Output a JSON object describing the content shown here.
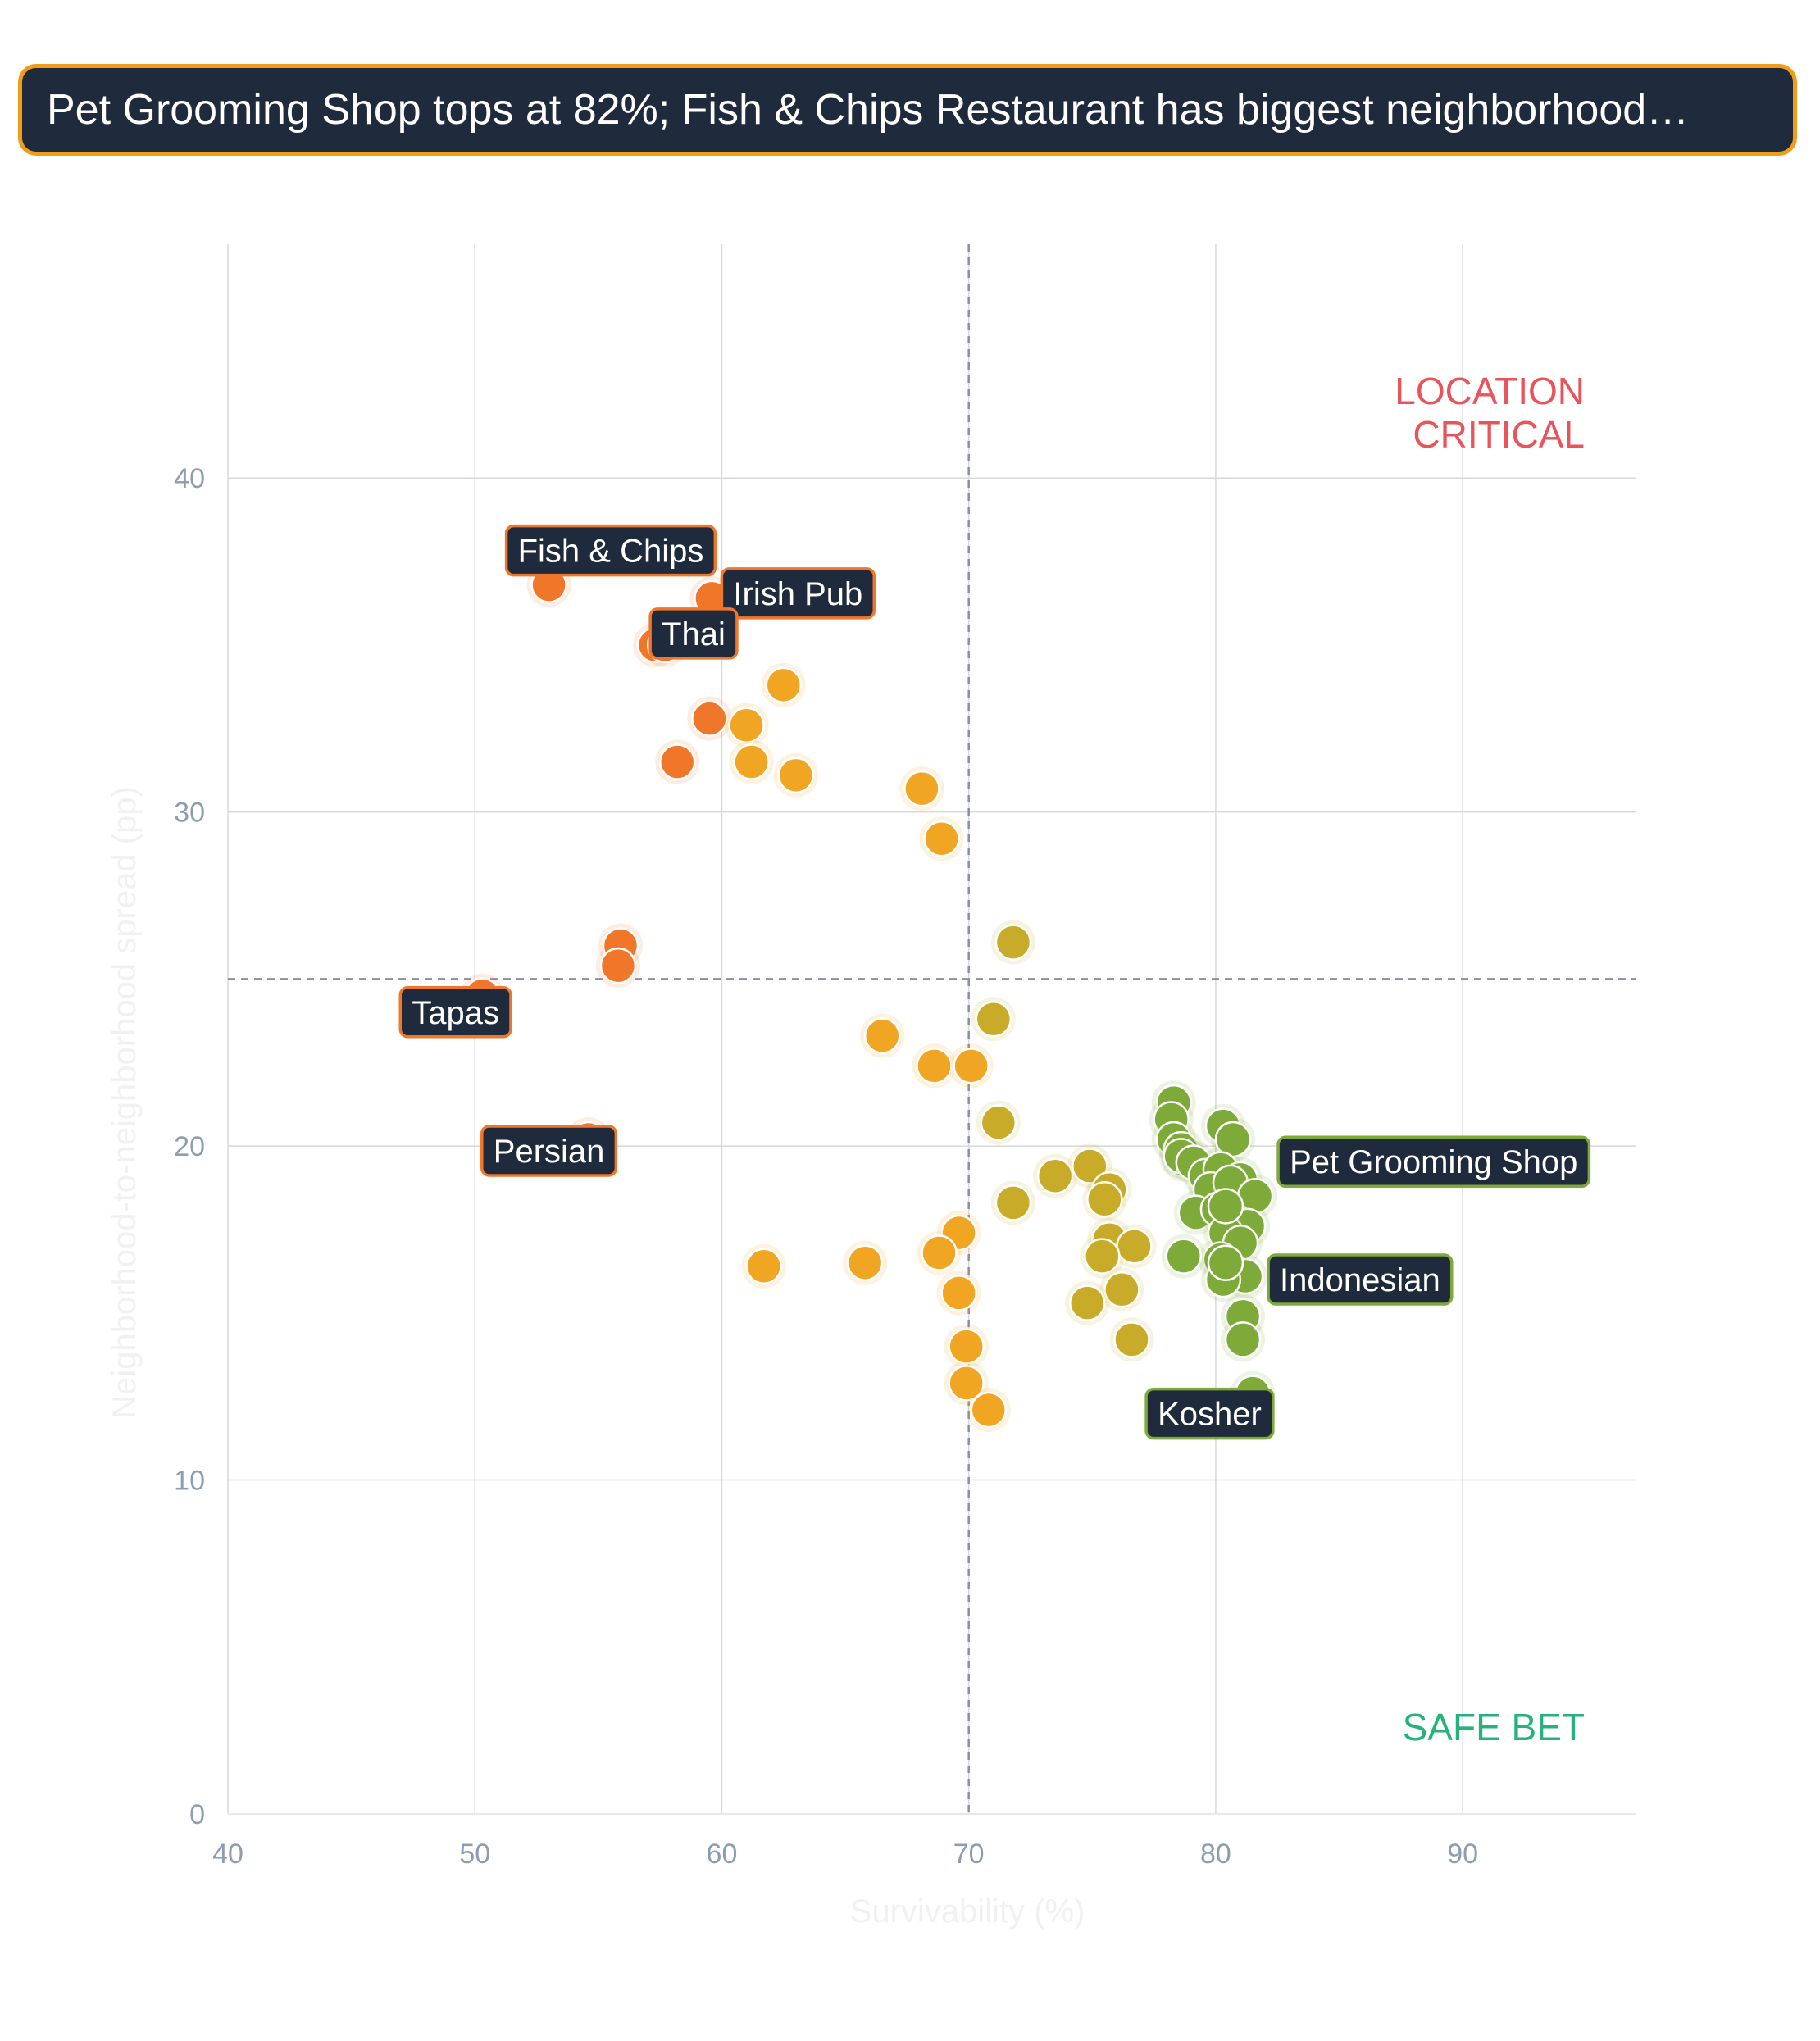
{
  "headline": "Pet Grooming Shop tops at 82%; Fish & Chips Restaurant has biggest neighborhood…",
  "quadrants": {
    "top_right": {
      "lines": [
        "LOCATION",
        "CRITICAL"
      ],
      "color": "#e8545a"
    },
    "bottom_right": {
      "lines": [
        "SAFE BET"
      ],
      "color": "#25b27c"
    }
  },
  "colors": {
    "orange": "#f0772a",
    "amber": "#f0a623",
    "olive": "#c8ab28",
    "green": "#7eaa3a",
    "annotation_bg": "#1f2a3c",
    "reference_line": "#8a8f9b",
    "headline_border": "#f19d1a"
  },
  "chart_data": {
    "type": "scatter",
    "xlabel": "Survivability (%)",
    "ylabel": "Neighborhood-to-neighborhood spread (pp)",
    "xlim": [
      40,
      97
    ],
    "ylim": [
      0,
      47
    ],
    "xticks": [
      40,
      50,
      60,
      70,
      80,
      90
    ],
    "yticks": [
      0,
      10,
      20,
      30,
      40
    ],
    "grid": true,
    "reference_lines": {
      "x": 70,
      "y": 25
    },
    "annotations": [
      {
        "label": "Fish & Chips",
        "x": 53.0,
        "y": 36.8
      },
      {
        "label": "Irish Pub",
        "x": 59.6,
        "y": 36.4
      },
      {
        "label": "Thai",
        "x": 57.3,
        "y": 35.0
      },
      {
        "label": "Tapas",
        "x": 50.3,
        "y": 24.5
      },
      {
        "label": "Persian",
        "x": 54.6,
        "y": 20.2
      },
      {
        "label": "Pet Grooming Shop",
        "x": 81.6,
        "y": 18.5
      },
      {
        "label": "Indonesian",
        "x": 81.2,
        "y": 16.1
      },
      {
        "label": "Kosher",
        "x": 81.5,
        "y": 12.6
      }
    ],
    "points": [
      {
        "x": 53.0,
        "y": 36.8
      },
      {
        "x": 59.6,
        "y": 36.4
      },
      {
        "x": 57.3,
        "y": 35.0
      },
      {
        "x": 57.7,
        "y": 35.0
      },
      {
        "x": 62.5,
        "y": 33.8
      },
      {
        "x": 59.5,
        "y": 32.8
      },
      {
        "x": 61.0,
        "y": 32.6
      },
      {
        "x": 58.2,
        "y": 31.5
      },
      {
        "x": 61.2,
        "y": 31.5
      },
      {
        "x": 63.0,
        "y": 31.1
      },
      {
        "x": 68.1,
        "y": 30.7
      },
      {
        "x": 68.9,
        "y": 29.2
      },
      {
        "x": 55.9,
        "y": 26.0
      },
      {
        "x": 55.8,
        "y": 25.4
      },
      {
        "x": 71.8,
        "y": 26.1
      },
      {
        "x": 50.3,
        "y": 24.5
      },
      {
        "x": 71.0,
        "y": 23.8
      },
      {
        "x": 66.5,
        "y": 23.3
      },
      {
        "x": 68.6,
        "y": 22.4
      },
      {
        "x": 70.1,
        "y": 22.4
      },
      {
        "x": 71.2,
        "y": 20.7
      },
      {
        "x": 54.6,
        "y": 20.2
      },
      {
        "x": 73.5,
        "y": 19.1
      },
      {
        "x": 74.9,
        "y": 19.4
      },
      {
        "x": 75.7,
        "y": 18.7
      },
      {
        "x": 75.5,
        "y": 18.4
      },
      {
        "x": 71.8,
        "y": 18.3
      },
      {
        "x": 69.6,
        "y": 17.4
      },
      {
        "x": 68.8,
        "y": 16.8
      },
      {
        "x": 61.7,
        "y": 16.4
      },
      {
        "x": 65.8,
        "y": 16.5
      },
      {
        "x": 75.7,
        "y": 17.2
      },
      {
        "x": 76.7,
        "y": 17.0
      },
      {
        "x": 75.4,
        "y": 16.7
      },
      {
        "x": 69.6,
        "y": 15.6
      },
      {
        "x": 76.2,
        "y": 15.7
      },
      {
        "x": 74.8,
        "y": 15.3
      },
      {
        "x": 76.6,
        "y": 14.2
      },
      {
        "x": 69.9,
        "y": 14.0
      },
      {
        "x": 69.9,
        "y": 12.9
      },
      {
        "x": 70.8,
        "y": 12.1
      },
      {
        "x": 78.3,
        "y": 21.3
      },
      {
        "x": 78.2,
        "y": 20.8
      },
      {
        "x": 78.3,
        "y": 20.2
      },
      {
        "x": 78.6,
        "y": 19.9
      },
      {
        "x": 78.7,
        "y": 19.6
      },
      {
        "x": 78.6,
        "y": 19.7
      },
      {
        "x": 79.1,
        "y": 19.5
      },
      {
        "x": 80.3,
        "y": 20.6
      },
      {
        "x": 80.7,
        "y": 20.2
      },
      {
        "x": 79.6,
        "y": 19.1
      },
      {
        "x": 80.2,
        "y": 19.3
      },
      {
        "x": 81.0,
        "y": 19.0
      },
      {
        "x": 79.8,
        "y": 18.7
      },
      {
        "x": 80.6,
        "y": 18.9
      },
      {
        "x": 81.6,
        "y": 18.5
      },
      {
        "x": 79.2,
        "y": 18.0
      },
      {
        "x": 80.1,
        "y": 18.1
      },
      {
        "x": 80.7,
        "y": 17.8
      },
      {
        "x": 81.3,
        "y": 17.6
      },
      {
        "x": 80.4,
        "y": 17.4
      },
      {
        "x": 81.0,
        "y": 17.1
      },
      {
        "x": 80.2,
        "y": 16.6
      },
      {
        "x": 80.6,
        "y": 16.3
      },
      {
        "x": 81.2,
        "y": 16.1
      },
      {
        "x": 78.7,
        "y": 16.7
      },
      {
        "x": 80.3,
        "y": 16.0
      },
      {
        "x": 81.1,
        "y": 14.9
      },
      {
        "x": 81.1,
        "y": 14.2
      },
      {
        "x": 81.5,
        "y": 12.6
      },
      {
        "x": 80.4,
        "y": 18.2
      },
      {
        "x": 80.4,
        "y": 16.5
      }
    ]
  }
}
